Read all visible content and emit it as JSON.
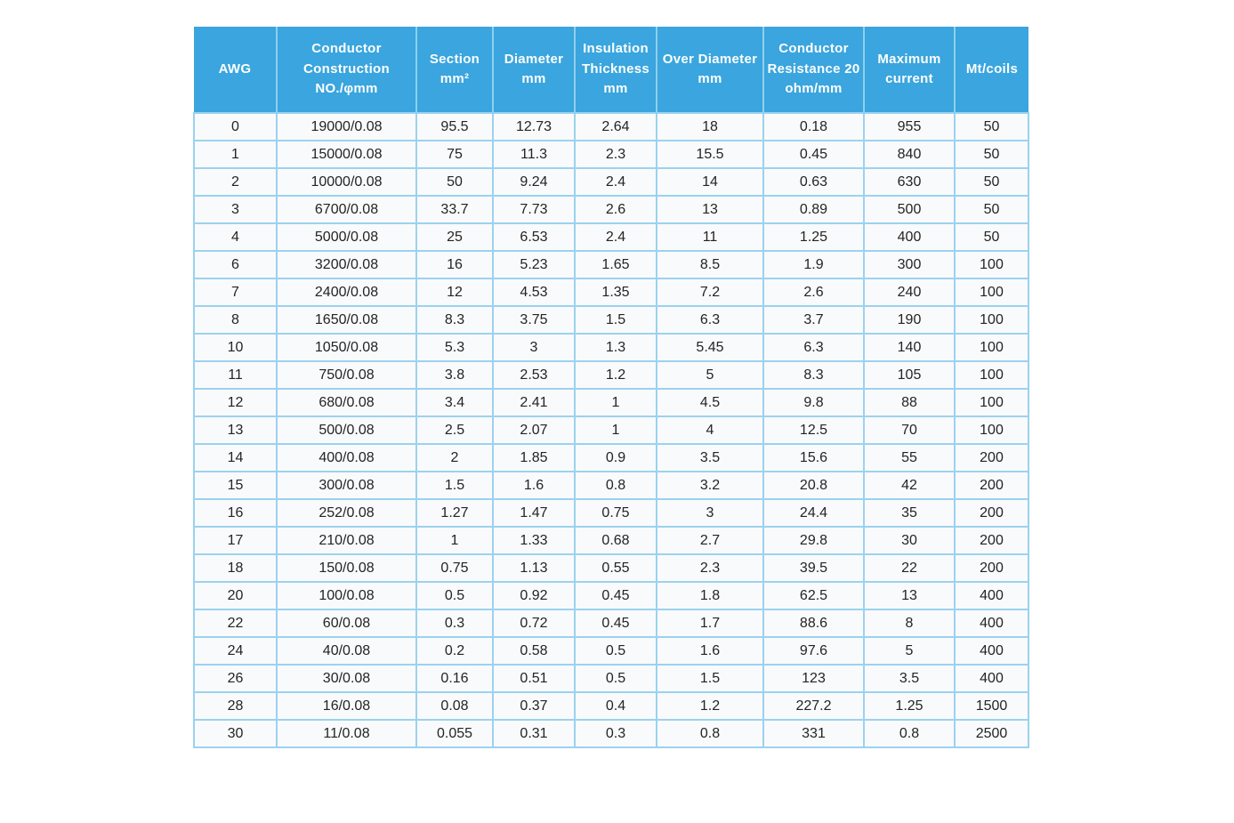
{
  "colors": {
    "header_bg": "#3AA5DE",
    "header_text": "#FDFEFE",
    "header_divider": "#8FCFEE",
    "cell_bg": "#F9FAFB",
    "cell_border": "#9BD2EF",
    "cell_text": "#242424",
    "page_bg": "#FFFFFF"
  },
  "table": {
    "columns": [
      {
        "id": "awg",
        "label": "AWG"
      },
      {
        "id": "conductor-construction",
        "label": "Conductor\nConstruction\nNO./φmm"
      },
      {
        "id": "section",
        "label": "Section\nmm²"
      },
      {
        "id": "diameter",
        "label": "Diameter\nmm"
      },
      {
        "id": "insulation-thickness",
        "label": "Insulation\nThickness\nmm"
      },
      {
        "id": "over-diameter",
        "label": "Over Diameter\nmm"
      },
      {
        "id": "conductor-resistance",
        "label": "Conductor\nResistance 20\nohm/mm"
      },
      {
        "id": "maximum-current",
        "label": "Maximum\ncurrent"
      },
      {
        "id": "mt-coils",
        "label": "Mt/coils"
      }
    ],
    "rows": [
      [
        "0",
        "19000/0.08",
        "95.5",
        "12.73",
        "2.64",
        "18",
        "0.18",
        "955",
        "50"
      ],
      [
        "1",
        "15000/0.08",
        "75",
        "11.3",
        "2.3",
        "15.5",
        "0.45",
        "840",
        "50"
      ],
      [
        "2",
        "10000/0.08",
        "50",
        "9.24",
        "2.4",
        "14",
        "0.63",
        "630",
        "50"
      ],
      [
        "3",
        "6700/0.08",
        "33.7",
        "7.73",
        "2.6",
        "13",
        "0.89",
        "500",
        "50"
      ],
      [
        "4",
        "5000/0.08",
        "25",
        "6.53",
        "2.4",
        "11",
        "1.25",
        "400",
        "50"
      ],
      [
        "6",
        "3200/0.08",
        "16",
        "5.23",
        "1.65",
        "8.5",
        "1.9",
        "300",
        "100"
      ],
      [
        "7",
        "2400/0.08",
        "12",
        "4.53",
        "1.35",
        "7.2",
        "2.6",
        "240",
        "100"
      ],
      [
        "8",
        "1650/0.08",
        "8.3",
        "3.75",
        "1.5",
        "6.3",
        "3.7",
        "190",
        "100"
      ],
      [
        "10",
        "1050/0.08",
        "5.3",
        "3",
        "1.3",
        "5.45",
        "6.3",
        "140",
        "100"
      ],
      [
        "11",
        "750/0.08",
        "3.8",
        "2.53",
        "1.2",
        "5",
        "8.3",
        "105",
        "100"
      ],
      [
        "12",
        "680/0.08",
        "3.4",
        "2.41",
        "1",
        "4.5",
        "9.8",
        "88",
        "100"
      ],
      [
        "13",
        "500/0.08",
        "2.5",
        "2.07",
        "1",
        "4",
        "12.5",
        "70",
        "100"
      ],
      [
        "14",
        "400/0.08",
        "2",
        "1.85",
        "0.9",
        "3.5",
        "15.6",
        "55",
        "200"
      ],
      [
        "15",
        "300/0.08",
        "1.5",
        "1.6",
        "0.8",
        "3.2",
        "20.8",
        "42",
        "200"
      ],
      [
        "16",
        "252/0.08",
        "1.27",
        "1.47",
        "0.75",
        "3",
        "24.4",
        "35",
        "200"
      ],
      [
        "17",
        "210/0.08",
        "1",
        "1.33",
        "0.68",
        "2.7",
        "29.8",
        "30",
        "200"
      ],
      [
        "18",
        "150/0.08",
        "0.75",
        "1.13",
        "0.55",
        "2.3",
        "39.5",
        "22",
        "200"
      ],
      [
        "20",
        "100/0.08",
        "0.5",
        "0.92",
        "0.45",
        "1.8",
        "62.5",
        "13",
        "400"
      ],
      [
        "22",
        "60/0.08",
        "0.3",
        "0.72",
        "0.45",
        "1.7",
        "88.6",
        "8",
        "400"
      ],
      [
        "24",
        "40/0.08",
        "0.2",
        "0.58",
        "0.5",
        "1.6",
        "97.6",
        "5",
        "400"
      ],
      [
        "26",
        "30/0.08",
        "0.16",
        "0.51",
        "0.5",
        "1.5",
        "123",
        "3.5",
        "400"
      ],
      [
        "28",
        "16/0.08",
        "0.08",
        "0.37",
        "0.4",
        "1.2",
        "227.2",
        "1.25",
        "1500"
      ],
      [
        "30",
        "11/0.08",
        "0.055",
        "0.31",
        "0.3",
        "0.8",
        "331",
        "0.8",
        "2500"
      ]
    ]
  }
}
